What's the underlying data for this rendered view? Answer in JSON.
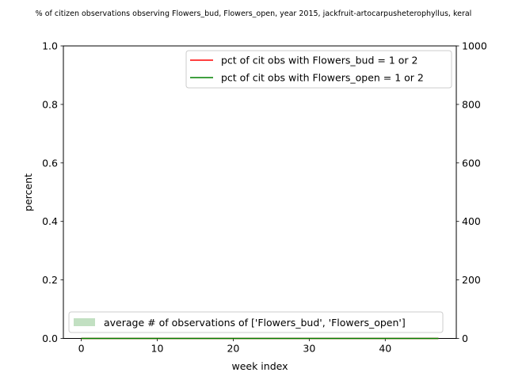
{
  "chart_data": {
    "type": "line",
    "title": "% of citizen observations observing Flowers_bud, Flowers_open, year 2015, jackfruit-artocarpusheterophyllus, keral",
    "xlabel": "week index",
    "ylabel": "percent",
    "xlim": [
      -2.35,
      49.35
    ],
    "ylim": [
      0,
      1.0
    ],
    "y2lim": [
      0,
      1000
    ],
    "x_ticks": [
      "0",
      "10",
      "20",
      "30",
      "40"
    ],
    "x_tick_values": [
      0,
      10,
      20,
      30,
      40
    ],
    "y_ticks": [
      "0.0",
      "0.2",
      "0.4",
      "0.6",
      "0.8",
      "1.0"
    ],
    "y_tick_values": [
      0,
      0.2,
      0.4,
      0.6,
      0.8,
      1.0
    ],
    "y2_ticks": [
      "0",
      "200",
      "400",
      "600",
      "800",
      "1000"
    ],
    "y2_tick_values": [
      0,
      200,
      400,
      600,
      800,
      1000
    ],
    "series": [
      {
        "name": "pct of cit obs with Flowers_bud = 1 or 2",
        "color": "#ff0000",
        "x": [
          0,
          47
        ],
        "values": [
          0,
          0
        ]
      },
      {
        "name": "pct of cit obs with Flowers_open = 1 or 2",
        "color": "#008000",
        "x": [
          0,
          47
        ],
        "values": [
          0,
          0
        ]
      }
    ],
    "area_series": {
      "name": "average # of observations of ['Flowers_bud', 'Flowers_open']",
      "color": "#c2e0c2",
      "x": [
        0,
        47
      ],
      "values": [
        0,
        0
      ]
    },
    "legend_upper": "top-right",
    "legend_lower": "bottom",
    "grid": false
  }
}
